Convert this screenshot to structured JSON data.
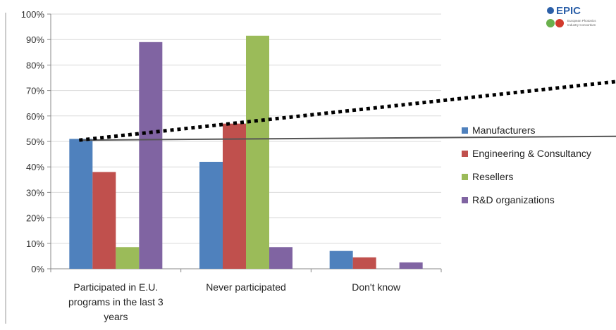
{
  "logo": {
    "name": "EPIC",
    "tagline_line1": "European Photonics",
    "tagline_line2": "Industry Consortium"
  },
  "chart_data": {
    "type": "bar",
    "categories": [
      [
        "Participated in E.U.",
        "programs in the last 3",
        "years"
      ],
      [
        "Never participated"
      ],
      [
        "Don't know"
      ]
    ],
    "series": [
      {
        "name": "Manufacturers",
        "color": "#4F81BD",
        "values": [
          51,
          42,
          7
        ]
      },
      {
        "name": "Engineering & Consultancy",
        "color": "#C0504D",
        "values": [
          38,
          57,
          4.5
        ]
      },
      {
        "name": "Resellers",
        "color": "#9BBB59",
        "values": [
          8.5,
          91.5,
          0
        ]
      },
      {
        "name": "R&D organizations",
        "color": "#8064A2",
        "values": [
          89,
          8.5,
          2.5
        ]
      }
    ],
    "ylim": [
      0,
      100
    ],
    "yticks": [
      "0%",
      "10%",
      "20%",
      "30%",
      "40%",
      "50%",
      "60%",
      "70%",
      "80%",
      "90%",
      "100%"
    ],
    "grid": true,
    "legend_position": "right",
    "overlays": [
      {
        "name": "solid-line",
        "style": "solid",
        "color": "#555555",
        "from": {
          "category": 0,
          "y": 50.5
        },
        "to": {
          "category": "right-edge",
          "y": 52
        }
      },
      {
        "name": "dotted-trend-line",
        "style": "dotted",
        "color": "#000000",
        "from": {
          "category": 0,
          "y": 50.5
        },
        "to": {
          "category": "right-edge",
          "y": 73.5
        }
      }
    ]
  }
}
